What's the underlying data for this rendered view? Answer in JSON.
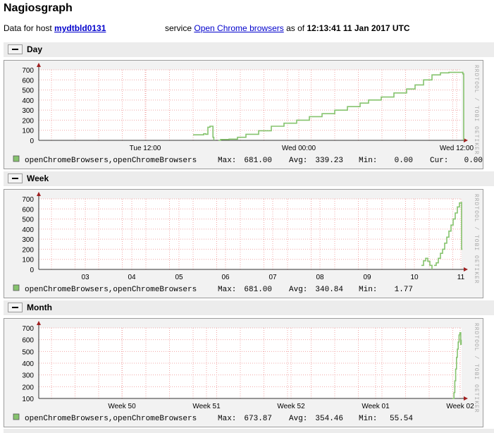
{
  "header": {
    "title": "Nagiosgraph",
    "host_prefix": "Data for host",
    "host_name": "mydtbld0131",
    "service_prefix": "service",
    "service_name": "Open Chrome browsers",
    "as_of_prefix": "as of",
    "timestamp": "12:13:41 11 Jan 2017 UTC"
  },
  "colors": {
    "line": "#86c36e",
    "grid": "#f1a8a8",
    "axis": "#000000",
    "arrow": "#a02020",
    "legend_swatch": "#86c36e"
  },
  "watermark": "RRDTOOL / TOBI OETIKER",
  "legend_swatch_icon": "square-swatch-icon",
  "sections": [
    {
      "label": "Day",
      "chart_data": {
        "type": "line",
        "ylim": [
          0,
          700
        ],
        "yticks": [
          0,
          100,
          200,
          300,
          400,
          500,
          600,
          700
        ],
        "x_tick_labels": [
          "Tue 12:00",
          "Wed 00:00",
          "Wed 12:00"
        ],
        "series": [
          {
            "name": "openChromeBrowsers,openChromeBrowsers",
            "max": "681.00",
            "avg": "339.23",
            "min": "0.00",
            "cur": "0.00"
          }
        ],
        "grid": true
      },
      "legend": {
        "series_name": "openChromeBrowsers,openChromeBrowsers",
        "max_label": "Max:",
        "max": "681.00",
        "avg_label": "Avg:",
        "avg": "339.23",
        "min_label": "Min:",
        "min": "0.00",
        "cur_label": "Cur:",
        "cur": "0.00"
      }
    },
    {
      "label": "Week",
      "chart_data": {
        "type": "line",
        "ylim": [
          0,
          700
        ],
        "yticks": [
          0,
          100,
          200,
          300,
          400,
          500,
          600,
          700
        ],
        "x_tick_labels": [
          "03",
          "04",
          "05",
          "06",
          "07",
          "08",
          "09",
          "10",
          "11"
        ],
        "series": [
          {
            "name": "openChromeBrowsers,openChromeBrowsers",
            "max": "681.00",
            "avg": "340.84",
            "min": "1.77"
          }
        ],
        "grid": true
      },
      "legend": {
        "series_name": "openChromeBrowsers,openChromeBrowsers",
        "max_label": "Max:",
        "max": "681.00",
        "avg_label": "Avg:",
        "avg": "340.84",
        "min_label": "Min:",
        "min": "1.77"
      }
    },
    {
      "label": "Month",
      "chart_data": {
        "type": "line",
        "ylim": [
          100,
          700
        ],
        "yticks": [
          100,
          200,
          300,
          400,
          500,
          600,
          700
        ],
        "x_tick_labels": [
          "Week 50",
          "Week 51",
          "Week 52",
          "Week 01",
          "Week 02"
        ],
        "series": [
          {
            "name": "openChromeBrowsers,openChromeBrowsers",
            "max": "673.87",
            "avg": "354.46",
            "min": "55.54"
          }
        ],
        "grid": true
      },
      "legend": {
        "series_name": "openChromeBrowsers,openChromeBrowsers",
        "max_label": "Max:",
        "max": "673.87",
        "avg_label": "Avg:",
        "avg": "354.46",
        "min_label": "Min:",
        "min": "55.54"
      }
    }
  ]
}
